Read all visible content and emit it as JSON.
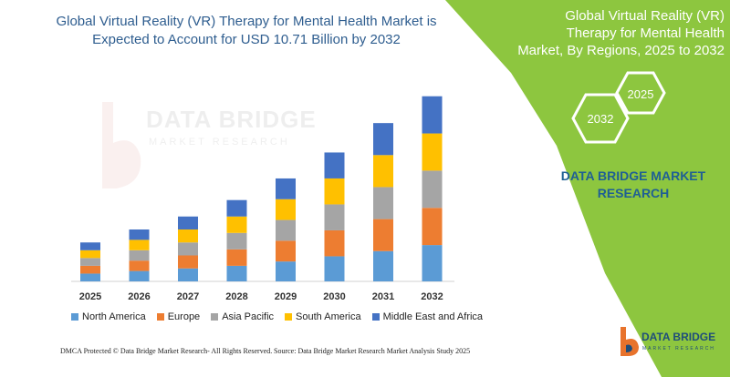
{
  "chart_data": {
    "type": "bar",
    "stacked": true,
    "title_lines": [
      "Global Virtual Reality (VR) Therapy for Mental Health Market is",
      "Expected to Account for USD 10.71 Billion by 2032"
    ],
    "categories": [
      "2025",
      "2026",
      "2027",
      "2028",
      "2029",
      "2030",
      "2031",
      "2032"
    ],
    "series": [
      {
        "name": "North America",
        "color": "#5b9bd5",
        "values": [
          0.45,
          0.6,
          0.75,
          0.9,
          1.15,
          1.45,
          1.75,
          2.1
        ]
      },
      {
        "name": "Europe",
        "color": "#ed7d31",
        "values": [
          0.45,
          0.6,
          0.75,
          0.95,
          1.2,
          1.5,
          1.85,
          2.15
        ]
      },
      {
        "name": "Asia Pacific",
        "color": "#a5a5a5",
        "values": [
          0.45,
          0.6,
          0.75,
          0.95,
          1.2,
          1.5,
          1.85,
          2.15
        ]
      },
      {
        "name": "South America",
        "color": "#ffc000",
        "values": [
          0.45,
          0.6,
          0.75,
          0.95,
          1.2,
          1.5,
          1.85,
          2.15
        ]
      },
      {
        "name": "Middle East and Africa",
        "color": "#4472c4",
        "values": [
          0.45,
          0.6,
          0.75,
          0.95,
          1.2,
          1.5,
          1.85,
          2.15
        ]
      }
    ],
    "ylim": [
      0,
      11
    ],
    "legend_position": "bottom",
    "grid": false
  },
  "side_panel": {
    "title_lines": [
      "Global Virtual Reality (VR)",
      "Therapy for Mental Health",
      "Market, By Regions, 2025 to 2032"
    ],
    "hex_start": "2025",
    "hex_end": "2032",
    "brand_lines": [
      "DATA BRIDGE MARKET",
      "RESEARCH"
    ],
    "background_color": "#8dc63f"
  },
  "watermark": {
    "name": "DATA BRIDGE",
    "sub": "MARKET RESEARCH"
  },
  "footer": {
    "left": "DMCA Protected © Data Bridge Market Research-  All Rights Reserved.",
    "right": "Source: Data Bridge Market Research  Market Analysis Study 2025"
  },
  "logo": {
    "name": "DATA BRIDGE",
    "sub": "MARKET RESEARCH"
  }
}
